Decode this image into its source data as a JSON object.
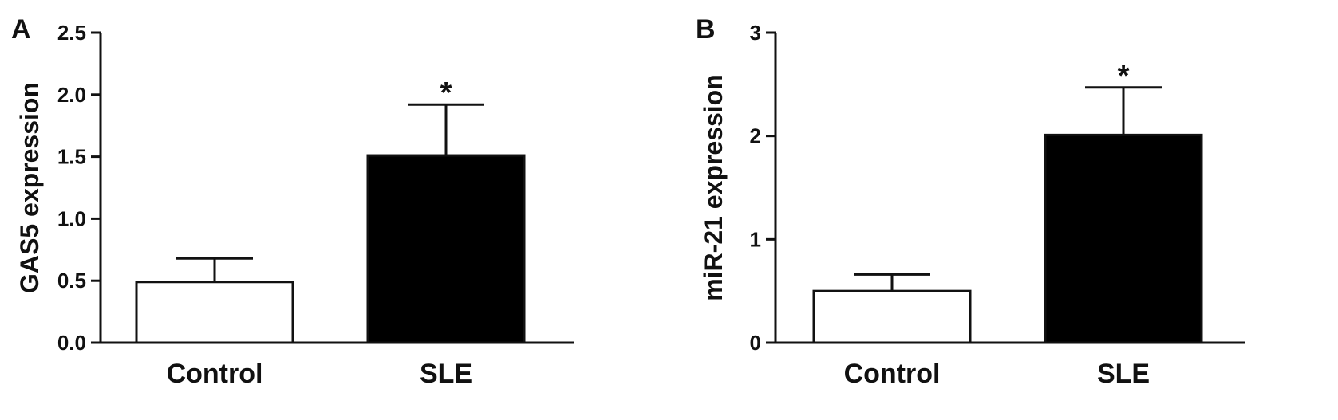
{
  "chart_data": [
    {
      "type": "bar",
      "panel": "A",
      "categories": [
        "Control",
        "SLE"
      ],
      "values": [
        0.49,
        1.51
      ],
      "error": [
        0.19,
        0.41
      ],
      "colors": [
        "#ffffff",
        "#000000"
      ],
      "significance": [
        "",
        "*"
      ],
      "ylabel": "GAS5 expression",
      "ylim": [
        0,
        2.5
      ],
      "yticks": [
        0.0,
        0.5,
        1.0,
        1.5,
        2.0,
        2.5
      ],
      "ytick_labels": [
        "0.0",
        "0.5",
        "1.0",
        "1.5",
        "2.0",
        "2.5"
      ],
      "grid": false,
      "legend": "none"
    },
    {
      "type": "bar",
      "panel": "B",
      "categories": [
        "Control",
        "SLE"
      ],
      "values": [
        0.5,
        2.01
      ],
      "error": [
        0.16,
        0.46
      ],
      "colors": [
        "#ffffff",
        "#000000"
      ],
      "significance": [
        "",
        "*"
      ],
      "ylabel": "miR-21 expression",
      "ylim": [
        0,
        3
      ],
      "yticks": [
        0,
        1,
        2,
        3
      ],
      "ytick_labels": [
        "0",
        "1",
        "2",
        "3"
      ],
      "grid": false,
      "legend": "none"
    }
  ]
}
